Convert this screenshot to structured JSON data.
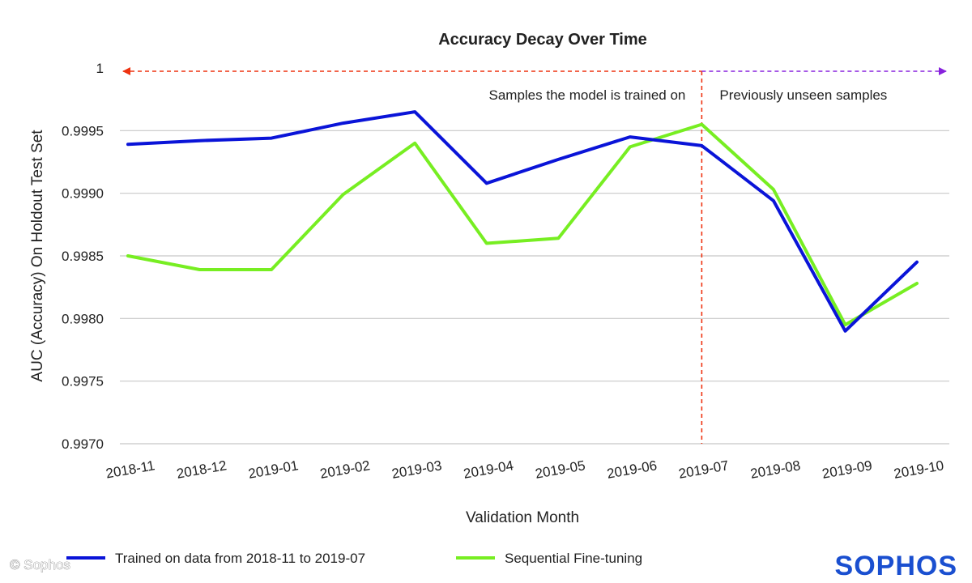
{
  "chart_data": {
    "type": "line",
    "title": "Accuracy Decay Over Time",
    "xlabel": "Validation Month",
    "ylabel": "AUC (Accuracy) On Holdout Test Set",
    "categories": [
      "2018-11",
      "2018-12",
      "2019-01",
      "2019-02",
      "2019-03",
      "2019-04",
      "2019-05",
      "2019-06",
      "2019-07",
      "2019-08",
      "2019-09",
      "2019-10"
    ],
    "ylim": [
      0.997,
      1.0
    ],
    "yticks": [
      {
        "value": 1.0,
        "label": "1"
      },
      {
        "value": 0.9995,
        "label": "0.9995"
      },
      {
        "value": 0.999,
        "label": "0.9990"
      },
      {
        "value": 0.9985,
        "label": "0.9985"
      },
      {
        "value": 0.998,
        "label": "0.9980"
      },
      {
        "value": 0.9975,
        "label": "0.9975"
      },
      {
        "value": 0.997,
        "label": "0.9970"
      }
    ],
    "grid": true,
    "series": [
      {
        "name": "Trained on data from 2018-11 to 2019-07",
        "color": "#0a14d8",
        "values": [
          0.99939,
          0.99942,
          0.99944,
          0.99956,
          0.99965,
          0.99908,
          0.99927,
          0.99945,
          0.99938,
          0.99894,
          0.9979,
          0.99845
        ]
      },
      {
        "name": "Sequential Fine-tuning",
        "color": "#77ee22",
        "values": [
          0.9985,
          0.99839,
          0.99839,
          0.99899,
          0.9994,
          0.9986,
          0.99864,
          0.99937,
          0.99955,
          0.99903,
          0.99795,
          0.99828
        ]
      }
    ],
    "annotations": {
      "split_after_category": "2019-07",
      "split_color": "#ee3311",
      "left_region_label": "Samples the model is trained on",
      "left_region_color": "#ee3311",
      "right_region_label": "Previously unseen samples",
      "right_region_color": "#8822dd"
    },
    "legend_position": "bottom"
  },
  "footer": {
    "copyright": "© Sophos",
    "logo": "SOPHOS",
    "logo_color": "#1a4fd0"
  }
}
